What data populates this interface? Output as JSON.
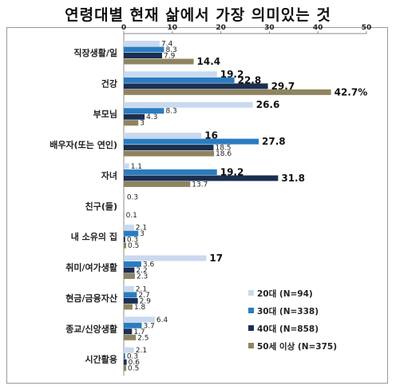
{
  "chart_data": {
    "type": "bar",
    "orientation": "horizontal",
    "title": "연령대별 현재 삶에서 가장 의미있는 것",
    "xlim": [
      0,
      50
    ],
    "xticks": [
      "0",
      "10",
      "20",
      "30",
      "40",
      "50"
    ],
    "categories": [
      "직장생활/일",
      "건강",
      "부모님",
      "배우자(또는 연인)",
      "자녀",
      "친구(들)",
      "내 소유의 집",
      "취미/여가생활",
      "현금/금융자산",
      "종교/신앙생활",
      "시간활용"
    ],
    "series": [
      {
        "name": "20대 (N=94)",
        "color": "#c9d9ef",
        "values": [
          7.4,
          19.2,
          26.6,
          16,
          1.1,
          0.3,
          2.1,
          17,
          2.1,
          6.4,
          2.1
        ],
        "labels": [
          "7.4",
          "19.2",
          "26.6",
          "16",
          "1.1",
          "0.3",
          "2.1",
          "17",
          "2.1",
          "6.4",
          "2.1"
        ]
      },
      {
        "name": "30대 (N=338)",
        "color": "#2a7cc0",
        "values": [
          8.3,
          22.8,
          8.3,
          27.8,
          19.2,
          0,
          3,
          3.6,
          2.7,
          3.7,
          0.3
        ],
        "labels": [
          "8.3",
          "22.8",
          "8.3",
          "27.8",
          "19.2",
          "",
          "3",
          "3.6",
          "2.7",
          "3.7",
          "0.3"
        ]
      },
      {
        "name": "40대 (N=858)",
        "color": "#1a2f52",
        "values": [
          7.9,
          29.7,
          4.3,
          18.5,
          31.8,
          0,
          0.3,
          2.2,
          2.9,
          1.7,
          0.6
        ],
        "labels": [
          "7.9",
          "29.7",
          "4.3",
          "18.5",
          "31.8",
          "",
          "0.3",
          "2.2",
          "2.9",
          "1.7",
          "0.6"
        ]
      },
      {
        "name": "50세 이상 (N=375)",
        "color": "#8f8460",
        "values": [
          14.4,
          42.7,
          3,
          18.6,
          13.7,
          0.1,
          0.5,
          2.3,
          1.8,
          2.5,
          0.5
        ],
        "labels": [
          "14.4",
          "42.7%",
          "3",
          "18.6",
          "13.7",
          "0.1",
          "0.5",
          "2.3",
          "1.8",
          "2.5",
          "0.5"
        ]
      }
    ],
    "big_labels": [
      [
        false,
        true,
        true,
        true,
        false,
        false,
        false,
        true,
        false,
        false,
        false
      ],
      [
        false,
        true,
        false,
        true,
        true,
        false,
        false,
        false,
        false,
        false,
        false
      ],
      [
        false,
        true,
        false,
        false,
        true,
        false,
        false,
        false,
        false,
        false,
        false
      ],
      [
        true,
        true,
        false,
        false,
        false,
        false,
        false,
        false,
        false,
        false,
        false
      ]
    ],
    "legend_position": "bottom-right",
    "grid": false
  }
}
